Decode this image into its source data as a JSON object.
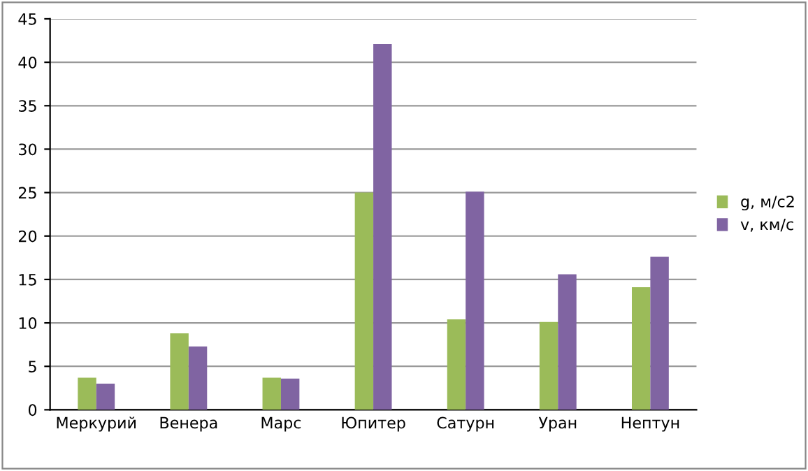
{
  "chart_data": {
    "type": "bar",
    "categories": [
      "Меркурий",
      "Венера",
      "Марс",
      "Юпитер",
      "Сатурн",
      "Уран",
      "Нептун"
    ],
    "series": [
      {
        "name": "g, м/с2",
        "color": "#9bbb59",
        "values": [
          3.7,
          8.8,
          3.7,
          25.0,
          10.4,
          10.1,
          14.1
        ]
      },
      {
        "name": "v, км/с",
        "color": "#8064a2",
        "values": [
          3.0,
          7.3,
          3.6,
          42.1,
          25.1,
          15.6,
          17.6
        ]
      }
    ],
    "ylim": [
      0,
      45
    ],
    "yticks": [
      0,
      5,
      10,
      15,
      20,
      25,
      30,
      35,
      40,
      45
    ],
    "grid": "y",
    "legend": "right"
  }
}
